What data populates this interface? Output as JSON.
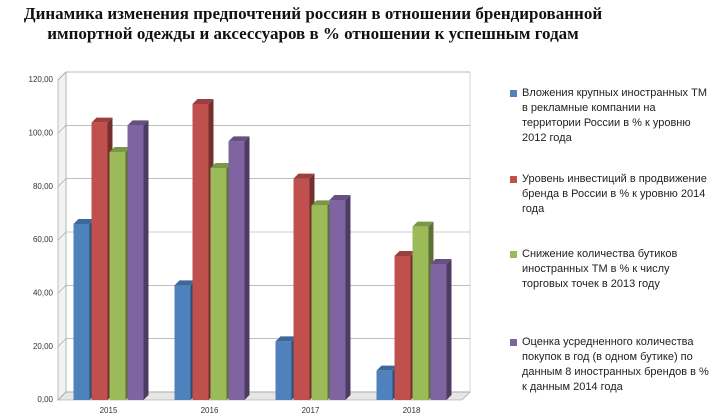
{
  "chart_data": {
    "type": "bar3d",
    "title": "Динамика изменения предпочтений россиян в отношении брендированной импортной одежды и аксессуаров в % отношении к успешным годам",
    "categories": [
      "2015",
      "2016",
      "2017",
      "2018"
    ],
    "series": [
      {
        "name": "Вложения крупных иностранных ТМ в рекламные компании на территории России в % к уровню 2012 года",
        "color": "#4f81bd",
        "values": [
          66,
          43,
          22,
          11
        ]
      },
      {
        "name": "Уровень инвестиций в продвижение бренда в России в % к уровню 2014 года",
        "color": "#c0504d",
        "values": [
          104,
          111,
          83,
          54
        ]
      },
      {
        "name": "Снижение количества бутиков иностранных ТМ в % к числу торговых точек в 2013 году",
        "color": "#9bbb59",
        "values": [
          93,
          87,
          73,
          65
        ]
      },
      {
        "name": "Оценка усредненного количества покупок в год (в одном бутике) по данным 8 иностранных брендов в % к данным 2014 года",
        "color": "#8064a2",
        "values": [
          103,
          97,
          75,
          51
        ]
      }
    ],
    "ylim": [
      0,
      120
    ],
    "yticks": [
      {
        "value": 0,
        "label": "0,00"
      },
      {
        "value": 20,
        "label": "20,00"
      },
      {
        "value": 40,
        "label": "40,00"
      },
      {
        "value": 60,
        "label": "60,00"
      },
      {
        "value": 80,
        "label": "80,00"
      },
      {
        "value": 100,
        "label": "100,00"
      },
      {
        "value": 120,
        "label": "120,00"
      }
    ],
    "grid": true,
    "legend": "right"
  }
}
